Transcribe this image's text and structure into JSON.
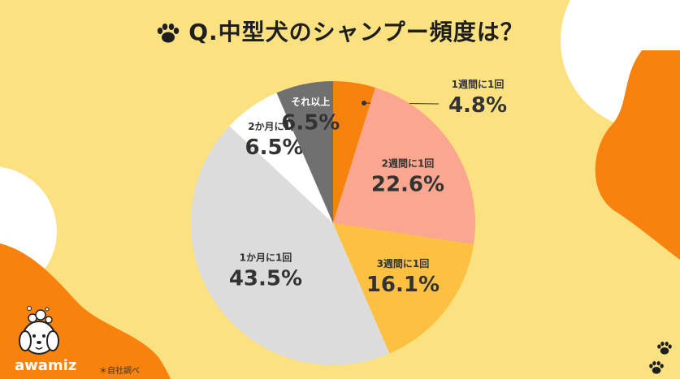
{
  "title": "Q.中型犬のシャンプー頻度は？",
  "brand": "awamiz",
  "note": "＊自社調べ",
  "colors": {
    "background": "#FCE181",
    "orange": "#F7820E",
    "white": "#FFFFFF"
  },
  "chart_data": {
    "type": "pie",
    "start": "12 o'clock",
    "direction": "clockwise",
    "slices": [
      {
        "label": "1週間に1回",
        "value": 4.8,
        "value_label": "4.8%",
        "color": "#F7820E"
      },
      {
        "label": "2週間に1回",
        "value": 22.6,
        "value_label": "22.6%",
        "color": "#FBA68E"
      },
      {
        "label": "3週間に1回",
        "value": 16.1,
        "value_label": "16.1%",
        "color": "#FDC040"
      },
      {
        "label": "1か月に1回",
        "value": 43.5,
        "value_label": "43.5%",
        "color": "#DCDCDC"
      },
      {
        "label": "2か月に1回",
        "value": 6.5,
        "value_label": "6.5%",
        "color": "#FFFFFF"
      },
      {
        "label": "それ以上",
        "value": 6.5,
        "value_label": "6.5%",
        "color": "#707070"
      }
    ]
  }
}
